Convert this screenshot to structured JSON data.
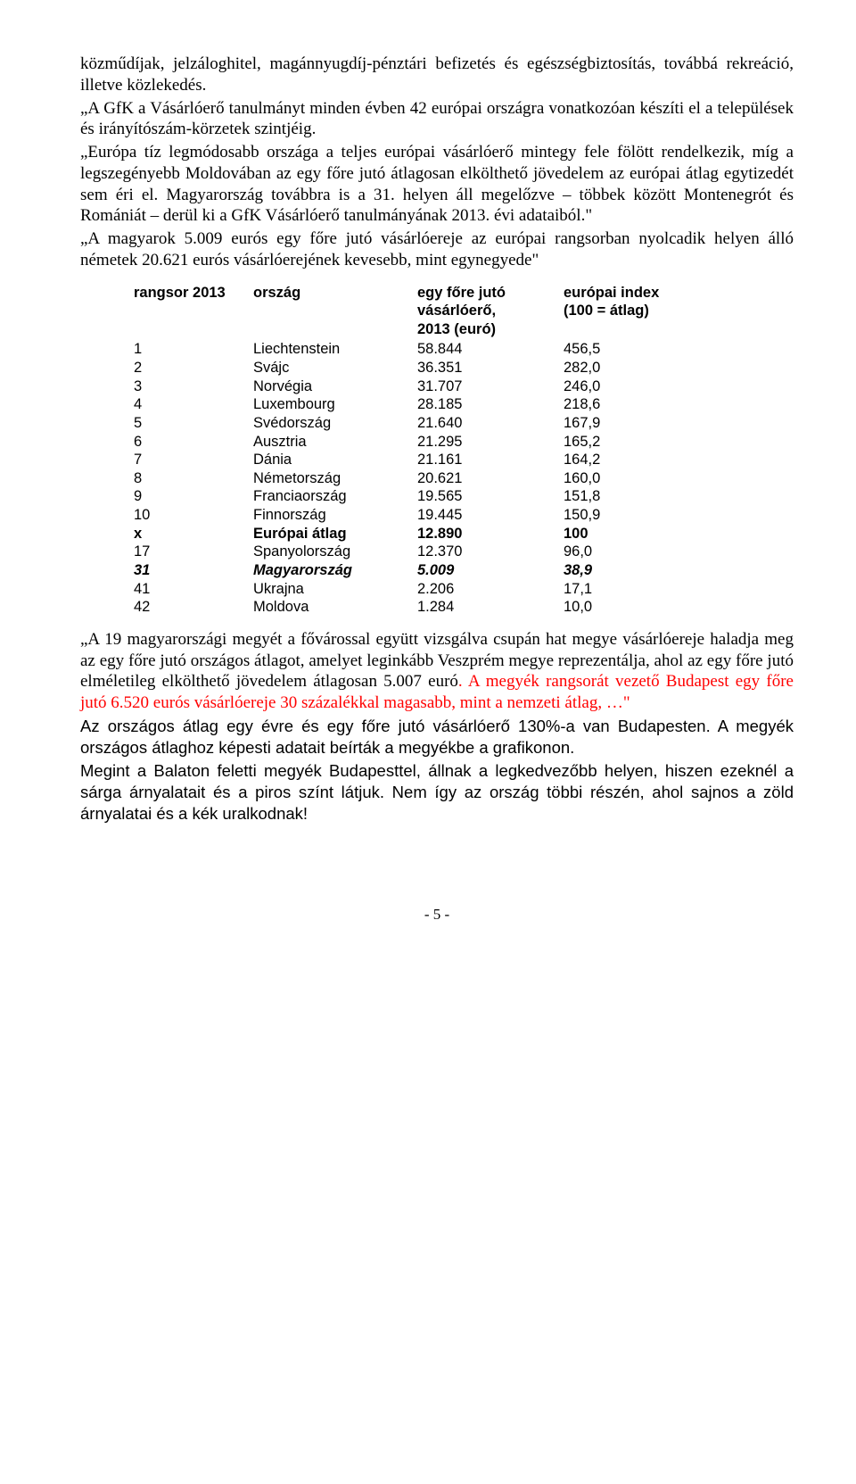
{
  "paragraphs": {
    "p1": "közműdíjak, jelzáloghitel, magánnyugdíj-pénztári befizetés és egészségbiztosítás, továbbá rekreáció, illetve közlekedés.",
    "p2": "„A GfK a Vásárlóerő tanulmányt minden évben 42 európai országra vonatkozóan készíti el a települések és irányítószám-körzetek szintjéig.",
    "p3": "„Európa tíz legmódosabb országa a teljes európai vásárlóerő mintegy fele fölött rendelkezik, míg a legszegényebb Moldovában az egy főre jutó átlagosan elkölthető jövedelem az európai átlag egytizedét sem éri el. Magyarország továbbra is a 31. helyen áll megelőzve – többek között Montenegrót és Romániát – derül ki a GfK Vásárlóerő tanulmányának 2013. évi adataiból.\"",
    "p4": "„A magyarok 5.009 eurós egy főre jutó vásárlóereje az európai rangsorban nyolcadik helyen álló németek 20.621 eurós vásárlóerejének kevesebb, mint egynegyede\""
  },
  "table": {
    "headers": {
      "rank": "rangsor 2013",
      "country": "ország",
      "value_l1": "egy főre jutó",
      "value_l2": "vásárlóerő,",
      "value_l3": "2013 (euró)",
      "index_l1": "európai index",
      "index_l2": "(100 = átlag)"
    },
    "rows": [
      {
        "rank": "1",
        "country": "Liechtenstein",
        "value": "58.844",
        "index": "456,5",
        "style": ""
      },
      {
        "rank": "2",
        "country": "Svájc",
        "value": "36.351",
        "index": "282,0",
        "style": ""
      },
      {
        "rank": "3",
        "country": "Norvégia",
        "value": "31.707",
        "index": "246,0",
        "style": ""
      },
      {
        "rank": "4",
        "country": "Luxembourg",
        "value": "28.185",
        "index": "218,6",
        "style": ""
      },
      {
        "rank": "5",
        "country": "Svédország",
        "value": "21.640",
        "index": "167,9",
        "style": ""
      },
      {
        "rank": "6",
        "country": "Ausztria",
        "value": "21.295",
        "index": "165,2",
        "style": ""
      },
      {
        "rank": "7",
        "country": "Dánia",
        "value": "21.161",
        "index": "164,2",
        "style": ""
      },
      {
        "rank": "8",
        "country": "Németország",
        "value": "20.621",
        "index": "160,0",
        "style": ""
      },
      {
        "rank": "9",
        "country": "Franciaország",
        "value": "19.565",
        "index": "151,8",
        "style": ""
      },
      {
        "rank": "10",
        "country": "Finnország",
        "value": "19.445",
        "index": "150,9",
        "style": ""
      },
      {
        "rank": "x",
        "country": "Európai átlag",
        "value": "12.890",
        "index": "100",
        "style": "bold"
      },
      {
        "rank": "17",
        "country": "Spanyolország",
        "value": "12.370",
        "index": "96,0",
        "style": ""
      },
      {
        "rank": "31",
        "country": "Magyarország",
        "value": "5.009",
        "index": "38,9",
        "style": "boldit"
      },
      {
        "rank": "41",
        "country": "Ukrajna",
        "value": "2.206",
        "index": "17,1",
        "style": ""
      },
      {
        "rank": "42",
        "country": "Moldova",
        "value": "1.284",
        "index": "10,0",
        "style": ""
      }
    ]
  },
  "lower": {
    "p5a": "„A 19 magyarországi megyét a fővárossal együtt vizsgálva csupán hat megye vásárlóereje haladja meg az egy főre jutó országos átlagot, amelyet leginkább Veszprém megye reprezentálja, ahol az egy főre jutó elméletileg elkölthető jövedelem átlagosan 5.007 euró",
    "p5b": ". A megyék rangsorát vezető Budapest egy főre jutó 6.520 eurós vásárlóereje 30 százalékkal magasabb, mint a nemzeti átlag, …\"",
    "p6": "Az országos átlag egy évre és egy főre jutó vásárlóerő 130%-a van Budapesten. A megyék országos átlaghoz képesti adatait beírták a megyékbe a grafikonon.",
    "p7": "Megint a Balaton feletti megyék Budapesttel, állnak a legkedvezőbb helyen, hiszen ezeknél a sárga árnyalatait és a piros színt látjuk. Nem így az ország többi részén, ahol sajnos a zöld árnyalatai és a kék uralkodnak!"
  },
  "pageNumber": "- 5 -"
}
